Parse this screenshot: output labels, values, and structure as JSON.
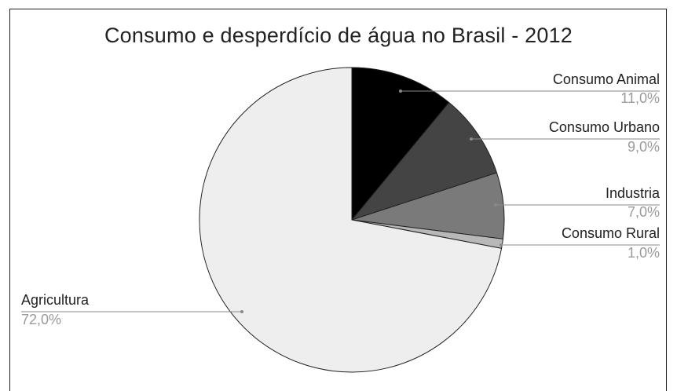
{
  "chart_data": {
    "type": "pie",
    "title": "Consumo e desperdício de água no Brasil - 2012",
    "slices": [
      {
        "label": "Consumo Animal",
        "value": 11.0,
        "value_label": "11,0%",
        "color": "#000000"
      },
      {
        "label": "Consumo Urbano",
        "value": 9.0,
        "value_label": "9,0%",
        "color": "#444444"
      },
      {
        "label": "Industria",
        "value": 7.0,
        "value_label": "7,0%",
        "color": "#7a7a7a"
      },
      {
        "label": "Consumo Rural",
        "value": 1.0,
        "value_label": "1,0%",
        "color": "#b8b8b8"
      },
      {
        "label": "Agricultura",
        "value": 72.0,
        "value_label": "72,0%",
        "color": "#eeeeee"
      }
    ],
    "start": "12 o'clock",
    "direction": "clockwise",
    "legend": "none (labels on leader lines)",
    "grid": false
  }
}
